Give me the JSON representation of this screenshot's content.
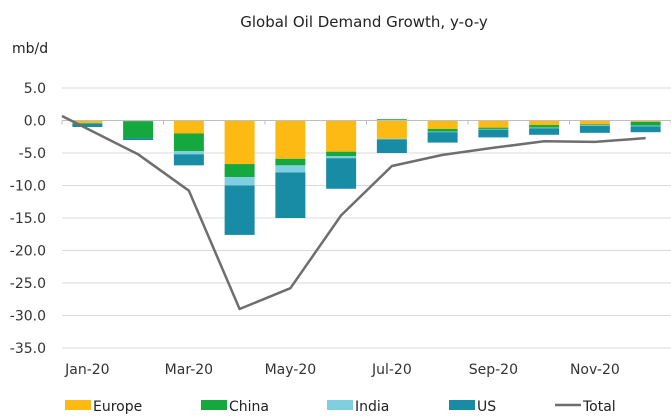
{
  "chart_data": {
    "type": "bar",
    "subtype": "stacked-bar-with-line",
    "title": "Global Oil Demand Growth, y-o-y",
    "ylabel": "mb/d",
    "xlabel": "",
    "ylim": [
      -35,
      5
    ],
    "yticks": [
      5,
      0,
      -5,
      -10,
      -15,
      -20,
      -25,
      -30,
      -35
    ],
    "ytick_labels": [
      "5.0",
      "0.0",
      "-5.0",
      "-10.0",
      "-15.0",
      "-20.0",
      "-25.0",
      "-30.0",
      "-35.0"
    ],
    "categories": [
      "Jan-20",
      "Feb-20",
      "Mar-20",
      "Apr-20",
      "May-20",
      "Jun-20",
      "Jul-20",
      "Aug-20",
      "Sep-20",
      "Oct-20",
      "Nov-20",
      "Dec-20"
    ],
    "xtick_labels_shown": [
      "Jan-20",
      "",
      "Mar-20",
      "",
      "May-20",
      "",
      "Jul-20",
      "",
      "Sep-20",
      "",
      "Nov-20",
      ""
    ],
    "grid": true,
    "legend_position": "bottom",
    "series": [
      {
        "name": "Europe",
        "kind": "bar",
        "color": "#FDBA12",
        "values": [
          -0.4,
          -0.1,
          -2.0,
          -6.7,
          -5.9,
          -4.8,
          -2.8,
          -1.3,
          -1.1,
          -0.7,
          -0.6,
          -0.2
        ]
      },
      {
        "name": "China",
        "kind": "bar",
        "color": "#14A83F",
        "values": [
          -0.1,
          -2.6,
          -2.7,
          -2.0,
          -1.0,
          -0.7,
          0.2,
          -0.4,
          -0.2,
          -0.4,
          -0.1,
          -0.6
        ]
      },
      {
        "name": "India",
        "kind": "bar",
        "color": "#7FCFE0",
        "values": [
          0.0,
          0.0,
          -0.5,
          -1.3,
          -1.1,
          -0.3,
          -0.1,
          -0.1,
          -0.1,
          -0.1,
          -0.1,
          -0.1
        ]
      },
      {
        "name": "US",
        "kind": "bar",
        "color": "#178CA4",
        "values": [
          -0.5,
          -0.3,
          -1.7,
          -7.6,
          -7.0,
          -4.7,
          -2.1,
          -1.6,
          -1.2,
          -1.0,
          -1.1,
          -0.9
        ]
      },
      {
        "name": "Total",
        "kind": "line",
        "color": "#6E6E6E",
        "values": [
          0.7,
          -5.2,
          -10.8,
          -29.0,
          -25.8,
          -14.6,
          -7.0,
          -5.3,
          -4.2,
          -3.2,
          -3.3,
          -2.7
        ]
      }
    ],
    "colors": {
      "gridline": "#D9D9D9",
      "axis": "#BFBFBF"
    }
  }
}
